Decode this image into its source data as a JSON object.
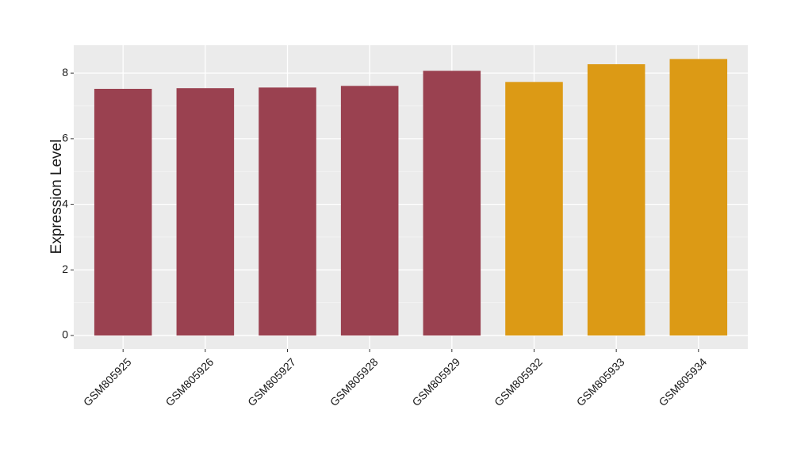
{
  "chart_data": {
    "type": "bar",
    "y_label": "Expression Level",
    "categories": [
      "GSM805925",
      "GSM805926",
      "GSM805927",
      "GSM805928",
      "GSM805929",
      "GSM805932",
      "GSM805933",
      "GSM805934"
    ],
    "values": [
      7.52,
      7.54,
      7.56,
      7.61,
      8.07,
      7.73,
      8.27,
      8.43
    ],
    "colors": [
      "#9a4150",
      "#9a4150",
      "#9a4150",
      "#9a4150",
      "#9a4150",
      "#dc9a15",
      "#dc9a15",
      "#dc9a15"
    ],
    "ylim": [
      -0.41,
      8.85
    ],
    "yticks": [
      0,
      2,
      4,
      6,
      8
    ],
    "minor_yticks": [
      1,
      3,
      5,
      7
    ],
    "grid": true
  }
}
